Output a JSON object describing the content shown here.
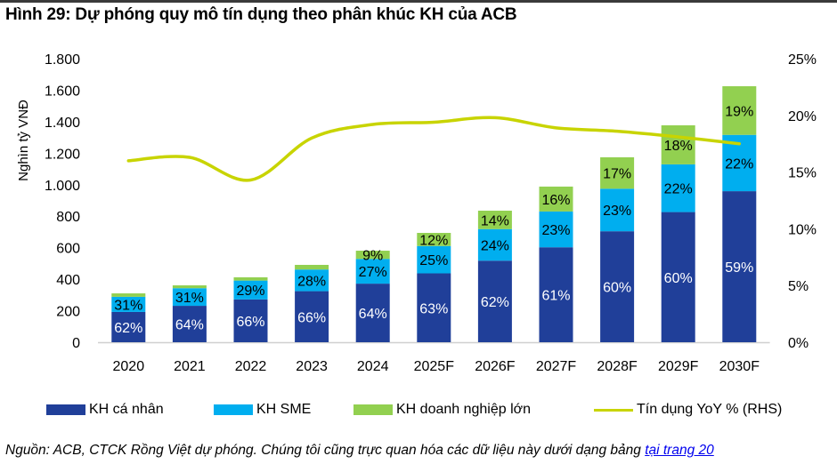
{
  "title": "Hình 29: Dự phóng quy mô tín dụng theo phân khúc KH của ACB",
  "source_text": "Nguồn: ACB, CTCK Rồng Việt dự phóng. Chúng tôi cũng trực quan hóa các dữ liệu này dưới dạng bảng ",
  "source_link": "tại trang 20",
  "colors": {
    "personal": "#203f99",
    "sme": "#00aeef",
    "corporate": "#92d050",
    "yoy_line": "#c8d400"
  },
  "chart_data": {
    "type": "bar",
    "stacked": true,
    "title": "Hình 29: Dự phóng quy mô tín dụng theo phân khúc KH của ACB",
    "ylabel": "Nghìn tỷ VNĐ",
    "y2label": "",
    "ylim": [
      0,
      1800
    ],
    "yticks": [
      "0",
      "200",
      "400",
      "600",
      "800",
      "1.000",
      "1.200",
      "1.400",
      "1.600",
      "1.800"
    ],
    "y2lim": [
      0,
      25
    ],
    "y2ticks": [
      "0%",
      "5%",
      "10%",
      "15%",
      "20%",
      "25%"
    ],
    "grid": false,
    "legend_position": "bottom",
    "categories": [
      "2020",
      "2021",
      "2022",
      "2023",
      "2024",
      "2025F",
      "2026F",
      "2027F",
      "2028F",
      "2029F",
      "2030F"
    ],
    "totals": [
      310,
      361,
      412,
      491,
      581,
      694,
      835,
      988,
      1174,
      1377,
      1625
    ],
    "series": [
      {
        "name": "KH cá nhân",
        "key": "personal",
        "share_pct": [
          62,
          64,
          66,
          66,
          64,
          63,
          62,
          61,
          60,
          60,
          59
        ],
        "labels": [
          "62%",
          "64%",
          "66%",
          "66%",
          "64%",
          "63%",
          "62%",
          "61%",
          "60%",
          "60%",
          "59%"
        ]
      },
      {
        "name": "KH SME",
        "key": "sme",
        "share_pct": [
          31,
          31,
          29,
          28,
          27,
          25,
          24,
          23,
          23,
          22,
          22
        ],
        "labels": [
          "31%",
          "31%",
          "29%",
          "28%",
          "27%",
          "25%",
          "24%",
          "23%",
          "23%",
          "22%",
          "22%"
        ]
      },
      {
        "name": "KH doanh nghiệp lớn",
        "key": "corporate",
        "share_pct": [
          7,
          5,
          5,
          6,
          9,
          12,
          14,
          16,
          17,
          18,
          19
        ],
        "labels": [
          "",
          "",
          "",
          "",
          "9%",
          "12%",
          "14%",
          "16%",
          "17%",
          "18%",
          "19%"
        ]
      }
    ],
    "line": {
      "name": "Tín dụng YoY % (RHS)",
      "axis": "right",
      "values": [
        16.0,
        16.3,
        14.3,
        18.0,
        19.2,
        19.4,
        19.8,
        18.9,
        18.6,
        18.1,
        17.5
      ]
    }
  },
  "legend": [
    {
      "label": "KH cá nhân",
      "type": "box",
      "key": "personal"
    },
    {
      "label": "KH SME",
      "type": "box",
      "key": "sme"
    },
    {
      "label": "KH doanh nghiệp lớn",
      "type": "box",
      "key": "corporate"
    },
    {
      "label": "Tín dụng YoY % (RHS)",
      "type": "line",
      "key": "yoy_line"
    }
  ]
}
